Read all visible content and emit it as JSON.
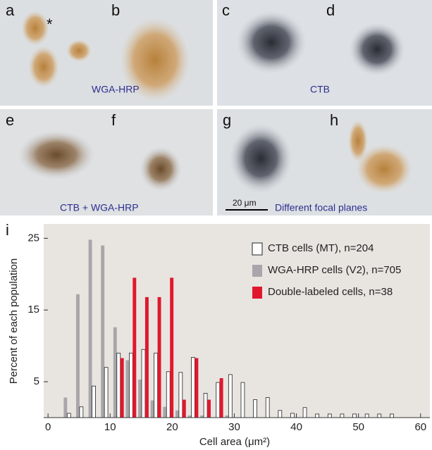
{
  "panels": {
    "labels": [
      "a",
      "b",
      "c",
      "d",
      "e",
      "f",
      "g",
      "h"
    ],
    "asterisk": "*",
    "captions": [
      "WGA-HRP",
      "CTB",
      "CTB + WGA-HRP",
      "Different focal planes"
    ],
    "scale_bar": "20 μm"
  },
  "chart_data": {
    "type": "histogram",
    "panel_label": "i",
    "x_label": "Cell area (μm²)",
    "y_label": "Percent of each population",
    "bins": [
      2,
      4,
      6,
      8,
      10,
      12,
      14,
      16,
      18,
      20,
      22,
      24,
      26,
      28,
      30,
      32,
      34,
      36,
      38,
      40,
      42,
      44,
      46,
      48,
      50,
      52,
      54,
      56
    ],
    "series": [
      {
        "name": "CTB cells (MT), n=204",
        "color": "#ffffff",
        "values": [
          0.6,
          1.5,
          4.4,
          7,
          9,
          9,
          9.5,
          9,
          6.4,
          6.3,
          8.4,
          3.4,
          4.9,
          6,
          4.9,
          2.5,
          2.8,
          1,
          0.6,
          1.4,
          0.5,
          0.5,
          0.5,
          0.5,
          0.5,
          0.5,
          0.5
        ]
      },
      {
        "name": "WGA-HRP cells (V2), n=705",
        "color": "#a8a6aa",
        "values": [
          2.8,
          17.2,
          24.8,
          24,
          12.6,
          8,
          5.3,
          2.4,
          1.5,
          1,
          0.3,
          0.3,
          0,
          0.3,
          0,
          0,
          0,
          0,
          0,
          0,
          0,
          0,
          0,
          0,
          0,
          0,
          0
        ]
      },
      {
        "name": "Double-labeled cells, n=38",
        "color": "#e0182d",
        "values": [
          0,
          0,
          0,
          0,
          8.3,
          19.5,
          16.8,
          16.8,
          19.5,
          2.5,
          8.3,
          2.5,
          5.5,
          0,
          0,
          0,
          0,
          0,
          0,
          0,
          0,
          0,
          0,
          0,
          0,
          0,
          0
        ]
      }
    ],
    "xlim": [
      -0.7,
      61.5
    ],
    "ylim": [
      0,
      27
    ],
    "xticks": [
      0,
      10,
      20,
      30,
      40,
      50,
      60
    ],
    "yticks": [
      5,
      15,
      25
    ]
  }
}
